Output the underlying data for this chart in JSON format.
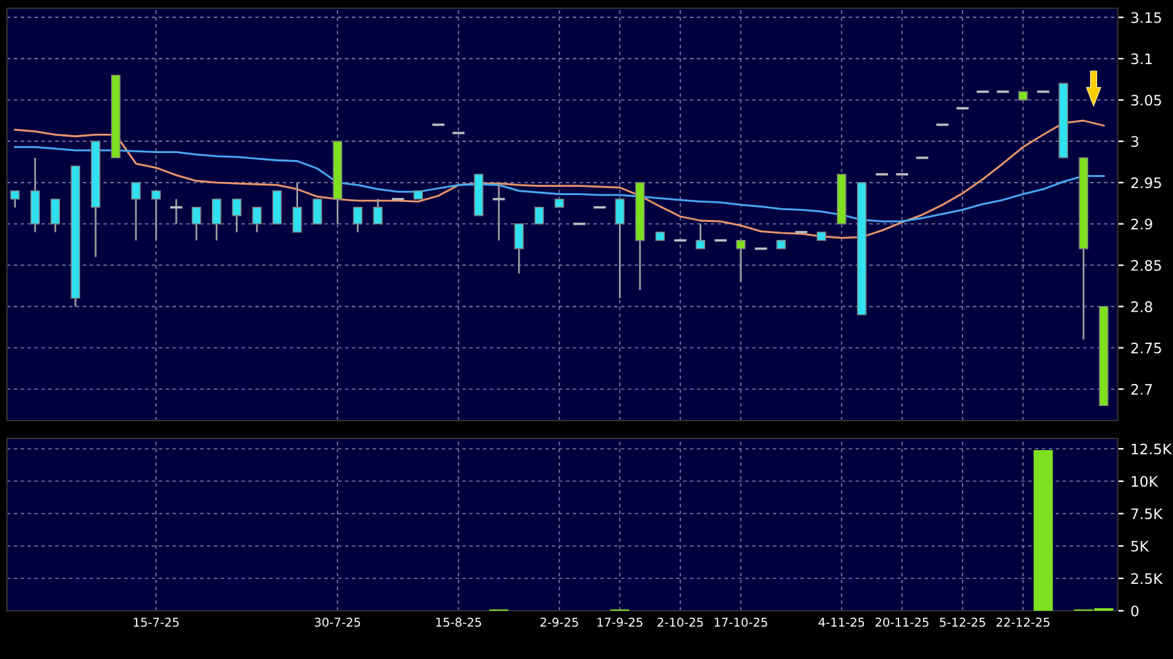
{
  "chart_data": [
    {
      "type": "candlestick",
      "categories": [
        null,
        null,
        null,
        null,
        null,
        null,
        null,
        null,
        null,
        null,
        null,
        null,
        null,
        null,
        null,
        null,
        null,
        null,
        null,
        null,
        null,
        null,
        null,
        null,
        null,
        null,
        null,
        null,
        null,
        null,
        null,
        null,
        null,
        null,
        null,
        null,
        null,
        null,
        null,
        null,
        null,
        null,
        null,
        null,
        null,
        null,
        null,
        null,
        null,
        null,
        null,
        null,
        null,
        null,
        null
      ],
      "ohlc": [
        [
          2.94,
          2.94,
          2.92,
          2.93
        ],
        [
          2.94,
          2.98,
          2.89,
          2.9
        ],
        [
          2.93,
          2.93,
          2.89,
          2.9
        ],
        [
          2.97,
          2.97,
          2.8,
          2.81
        ],
        [
          3.0,
          3.0,
          2.86,
          2.92
        ],
        [
          2.98,
          3.08,
          2.98,
          3.08
        ],
        [
          2.95,
          2.95,
          2.88,
          2.93
        ],
        [
          2.94,
          2.94,
          2.88,
          2.93
        ],
        [
          2.92,
          2.93,
          2.9,
          2.92
        ],
        [
          2.92,
          2.92,
          2.88,
          2.9
        ],
        [
          2.93,
          2.93,
          2.88,
          2.9
        ],
        [
          2.93,
          2.93,
          2.89,
          2.91
        ],
        [
          2.92,
          2.92,
          2.89,
          2.9
        ],
        [
          2.94,
          2.94,
          2.9,
          2.9
        ],
        [
          2.92,
          2.95,
          2.89,
          2.89
        ],
        [
          2.93,
          2.93,
          2.9,
          2.9
        ],
        [
          2.93,
          3.0,
          2.9,
          3.0
        ],
        [
          2.92,
          2.92,
          2.89,
          2.9
        ],
        [
          2.92,
          2.93,
          2.9,
          2.9
        ],
        [
          2.93,
          2.93,
          2.93,
          2.93
        ],
        [
          2.94,
          2.94,
          2.93,
          2.93
        ],
        [
          3.02,
          3.02,
          3.02,
          3.02
        ],
        [
          3.01,
          3.01,
          3.01,
          3.01
        ],
        [
          2.96,
          2.96,
          2.91,
          2.91
        ],
        [
          2.93,
          2.95,
          2.88,
          2.93
        ],
        [
          2.9,
          2.9,
          2.84,
          2.87
        ],
        [
          2.92,
          2.92,
          2.9,
          2.9
        ],
        [
          2.93,
          2.93,
          2.92,
          2.92
        ],
        [
          2.9,
          2.9,
          2.9,
          2.9
        ],
        [
          2.92,
          2.92,
          2.92,
          2.92
        ],
        [
          2.93,
          2.93,
          2.81,
          2.9
        ],
        [
          2.88,
          2.95,
          2.82,
          2.95
        ],
        [
          2.89,
          2.89,
          2.88,
          2.88
        ],
        [
          2.88,
          2.88,
          2.88,
          2.88
        ],
        [
          2.88,
          2.9,
          2.87,
          2.87
        ],
        [
          2.88,
          2.88,
          2.88,
          2.88
        ],
        [
          2.87,
          2.88,
          2.83,
          2.88
        ],
        [
          2.87,
          2.87,
          2.87,
          2.87
        ],
        [
          2.88,
          2.88,
          2.87,
          2.87
        ],
        [
          2.89,
          2.89,
          2.89,
          2.89
        ],
        [
          2.89,
          2.89,
          2.88,
          2.88
        ],
        [
          2.9,
          2.96,
          2.9,
          2.96
        ],
        [
          2.95,
          2.95,
          2.79,
          2.79
        ],
        [
          2.96,
          2.96,
          2.96,
          2.96
        ],
        [
          2.96,
          2.96,
          2.96,
          2.96
        ],
        [
          2.98,
          2.98,
          2.98,
          2.98
        ],
        [
          3.02,
          3.02,
          3.02,
          3.02
        ],
        [
          3.04,
          3.04,
          3.04,
          3.04
        ],
        [
          3.06,
          3.06,
          3.06,
          3.06
        ],
        [
          3.06,
          3.06,
          3.06,
          3.06
        ],
        [
          3.05,
          3.06,
          3.05,
          3.06
        ],
        [
          3.06,
          3.06,
          3.06,
          3.06
        ],
        [
          3.07,
          3.07,
          2.98,
          2.98
        ],
        [
          2.87,
          2.98,
          2.76,
          2.98
        ],
        [
          2.68,
          2.8,
          2.68,
          2.8
        ]
      ],
      "colors": [
        "#30e0f0",
        "#30e0f0",
        "#30e0f0",
        "#30e0f0",
        "#30e0f0",
        "#7fe020",
        "#30e0f0",
        "#30e0f0",
        "#c0c0c0",
        "#30e0f0",
        "#30e0f0",
        "#30e0f0",
        "#30e0f0",
        "#30e0f0",
        "#30e0f0",
        "#30e0f0",
        "#7fe020",
        "#30e0f0",
        "#30e0f0",
        "#c0c0c0",
        "#30e0f0",
        "#c0c0c0",
        "#c0c0c0",
        "#30e0f0",
        "#c0c0c0",
        "#30e0f0",
        "#30e0f0",
        "#30e0f0",
        "#c0c0c0",
        "#c0c0c0",
        "#30e0f0",
        "#7fe020",
        "#30e0f0",
        "#c0c0c0",
        "#30e0f0",
        "#c0c0c0",
        "#7fe020",
        "#c0c0c0",
        "#30e0f0",
        "#c0c0c0",
        "#30e0f0",
        "#7fe020",
        "#30e0f0",
        "#c0c0c0",
        "#c0c0c0",
        "#c0c0c0",
        "#c0c0c0",
        "#c0c0c0",
        "#c0c0c0",
        "#c0c0c0",
        "#7fe020",
        "#c0c0c0",
        "#30e0f0",
        "#7fe020",
        "#7fe020"
      ],
      "series": [
        {
          "type": "line",
          "color": "#e8966a",
          "values": [
            3.014,
            3.012,
            3.008,
            3.006,
            3.008,
            3.008,
            2.973,
            2.968,
            2.959,
            2.952,
            2.95,
            2.949,
            2.948,
            2.947,
            2.942,
            2.933,
            2.93,
            2.928,
            2.928,
            2.928,
            2.927,
            2.934,
            2.947,
            2.949,
            2.949,
            2.947,
            2.946,
            2.946,
            2.946,
            2.945,
            2.944,
            2.934,
            2.921,
            2.909,
            2.904,
            2.903,
            2.898,
            2.891,
            2.889,
            2.888,
            2.885,
            2.883,
            2.884,
            2.892,
            2.902,
            2.911,
            2.923,
            2.937,
            2.954,
            2.973,
            2.993,
            3.008,
            3.022,
            3.025,
            3.019
          ]
        },
        {
          "type": "line",
          "color": "#4aa8f0",
          "values": [
            2.993,
            2.993,
            2.991,
            2.989,
            2.989,
            2.989,
            2.988,
            2.987,
            2.987,
            2.984,
            2.982,
            2.981,
            2.979,
            2.977,
            2.976,
            2.967,
            2.95,
            2.947,
            2.942,
            2.939,
            2.939,
            2.943,
            2.947,
            2.948,
            2.947,
            2.94,
            2.938,
            2.936,
            2.936,
            2.935,
            2.935,
            2.933,
            2.931,
            2.929,
            2.927,
            2.926,
            2.923,
            2.921,
            2.918,
            2.917,
            2.915,
            2.911,
            2.905,
            2.903,
            2.903,
            2.907,
            2.912,
            2.917,
            2.924,
            2.929,
            2.936,
            2.942,
            2.951,
            2.958,
            2.958
          ]
        }
      ],
      "ylim": [
        2.662,
        3.161
      ],
      "yticks": [
        2.7,
        2.75,
        2.8,
        2.85,
        2.9,
        2.95,
        3,
        3.05,
        3.1,
        3.15
      ],
      "grid": true,
      "tick_labels": "y"
    },
    {
      "type": "bar",
      "categories": [
        null,
        null,
        null,
        null,
        null,
        null,
        null,
        "15-7-25",
        null,
        null,
        null,
        null,
        null,
        null,
        null,
        null,
        "30-7-25",
        null,
        null,
        null,
        null,
        null,
        "15-8-25",
        null,
        null,
        null,
        null,
        "2-9-25",
        null,
        null,
        "17-9-25",
        null,
        null,
        "2-10-25",
        null,
        null,
        "17-10-25",
        null,
        null,
        null,
        null,
        "4-11-25",
        null,
        null,
        "20-11-25",
        null,
        null,
        "5-12-25",
        null,
        null,
        "22-12-25",
        null,
        null,
        null,
        null
      ],
      "values": [
        0,
        0,
        0,
        0,
        0,
        0,
        0,
        0,
        0,
        0,
        0,
        0,
        0,
        0,
        0,
        0,
        0,
        0,
        0,
        0,
        0,
        0,
        0,
        0,
        100,
        0,
        0,
        0,
        0,
        0,
        100,
        0,
        0,
        0,
        0,
        0,
        0,
        0,
        0,
        0,
        0,
        0,
        0,
        0,
        0,
        0,
        0,
        0,
        0,
        0,
        0,
        12400,
        0,
        100,
        200
      ],
      "color": "#7fe020",
      "ylim": [
        0,
        13300
      ],
      "yticks": [
        0,
        {
          "value": 2500,
          "label": "2.5K"
        },
        {
          "value": 5000,
          "label": "5K"
        },
        {
          "value": 7500,
          "label": "7.5K"
        },
        {
          "value": 10000,
          "label": "10K"
        },
        {
          "value": 12500,
          "label": "12.5K"
        }
      ],
      "grid": true
    }
  ]
}
